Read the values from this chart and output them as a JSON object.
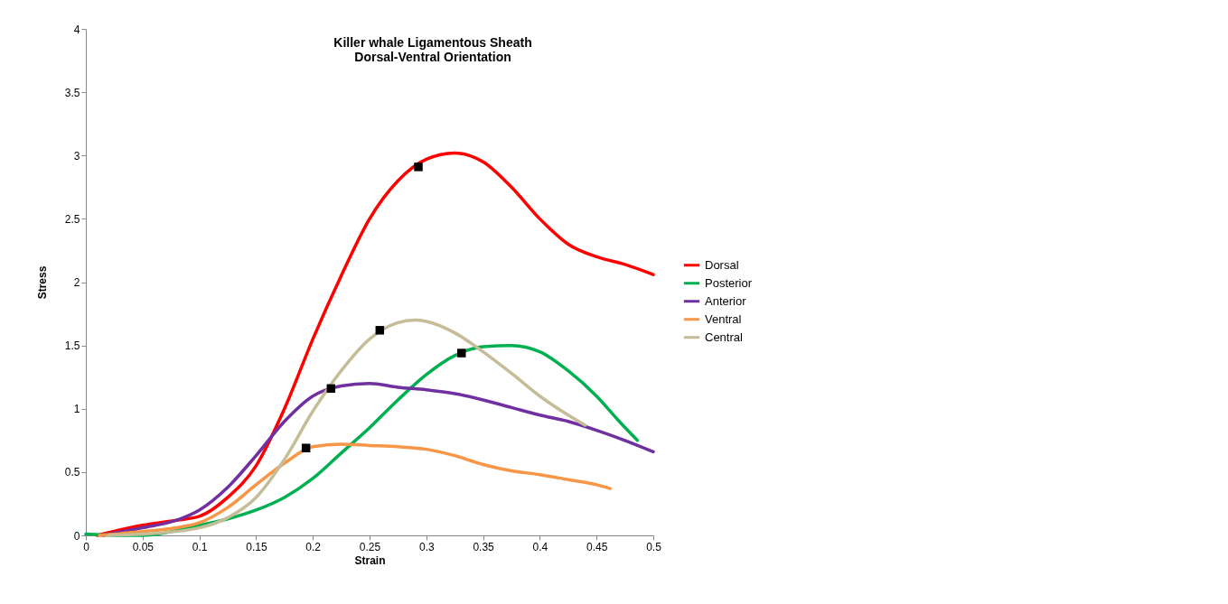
{
  "chart_data": {
    "type": "line",
    "title": "Killer whale Ligamentous Sheath\nDorsal-Ventral Orientation",
    "xlabel": "Strain",
    "ylabel": "Stress",
    "xlim": [
      0,
      0.5
    ],
    "ylim": [
      0,
      4
    ],
    "xticks": [
      0,
      0.05,
      0.1,
      0.15,
      0.2,
      0.25,
      0.3,
      0.35,
      0.4,
      0.45,
      0.5
    ],
    "yticks": [
      0,
      0.5,
      1,
      1.5,
      2,
      2.5,
      3,
      3.5,
      4
    ],
    "grid": false,
    "legend": "right",
    "marker": "none",
    "line_style": "solid",
    "series": [
      {
        "name": "Dorsal",
        "color": "#ff0000",
        "x": [
          0.01,
          0.05,
          0.08,
          0.1,
          0.125,
          0.15,
          0.175,
          0.2,
          0.225,
          0.25,
          0.275,
          0.3,
          0.325,
          0.35,
          0.375,
          0.4,
          0.425,
          0.45,
          0.475,
          0.5
        ],
        "values": [
          0,
          0.08,
          0.12,
          0.15,
          0.3,
          0.55,
          1.0,
          1.55,
          2.05,
          2.5,
          2.8,
          2.97,
          3.02,
          2.95,
          2.75,
          2.5,
          2.3,
          2.2,
          2.14,
          2.06
        ]
      },
      {
        "name": "Posterior",
        "color": "#00b050",
        "x": [
          0,
          0.025,
          0.05,
          0.1,
          0.125,
          0.15,
          0.175,
          0.2,
          0.225,
          0.25,
          0.275,
          0.3,
          0.325,
          0.35,
          0.375,
          0.4,
          0.425,
          0.45,
          0.47,
          0.486
        ],
        "values": [
          0.01,
          0,
          0,
          0.08,
          0.13,
          0.2,
          0.3,
          0.45,
          0.65,
          0.85,
          1.07,
          1.27,
          1.42,
          1.49,
          1.5,
          1.45,
          1.3,
          1.1,
          0.9,
          0.75
        ]
      },
      {
        "name": "Anterior",
        "color": "#7030a0",
        "x": [
          0.015,
          0.05,
          0.08,
          0.1,
          0.125,
          0.15,
          0.175,
          0.2,
          0.225,
          0.25,
          0.275,
          0.3,
          0.325,
          0.35,
          0.375,
          0.4,
          0.425,
          0.45,
          0.475,
          0.5
        ],
        "values": [
          0,
          0.06,
          0.12,
          0.2,
          0.38,
          0.63,
          0.9,
          1.1,
          1.18,
          1.2,
          1.17,
          1.15,
          1.12,
          1.07,
          1.01,
          0.95,
          0.9,
          0.83,
          0.75,
          0.66
        ]
      },
      {
        "name": "Ventral",
        "color": "#f79646",
        "x": [
          0.012,
          0.05,
          0.08,
          0.1,
          0.125,
          0.15,
          0.175,
          0.2,
          0.225,
          0.25,
          0.275,
          0.3,
          0.325,
          0.35,
          0.375,
          0.4,
          0.425,
          0.45,
          0.462
        ],
        "values": [
          0,
          0.03,
          0.06,
          0.1,
          0.22,
          0.4,
          0.57,
          0.7,
          0.72,
          0.71,
          0.7,
          0.68,
          0.63,
          0.56,
          0.51,
          0.48,
          0.44,
          0.4,
          0.37
        ]
      },
      {
        "name": "Central",
        "color": "#c4bd97",
        "x": [
          0.02,
          0.05,
          0.1,
          0.125,
          0.15,
          0.175,
          0.2,
          0.225,
          0.25,
          0.275,
          0.29,
          0.3,
          0.325,
          0.35,
          0.375,
          0.4,
          0.425,
          0.44
        ],
        "values": [
          0,
          0.01,
          0.06,
          0.14,
          0.3,
          0.6,
          0.98,
          1.3,
          1.55,
          1.68,
          1.7,
          1.69,
          1.6,
          1.45,
          1.28,
          1.1,
          0.95,
          0.87
        ]
      },
      {
        "type": "scatter",
        "marker": "square",
        "color": "#000000",
        "x": [
          0.293,
          0.331,
          0.216,
          0.194,
          0.259
        ],
        "values": [
          2.91,
          1.44,
          1.16,
          0.69,
          1.62
        ]
      }
    ]
  }
}
